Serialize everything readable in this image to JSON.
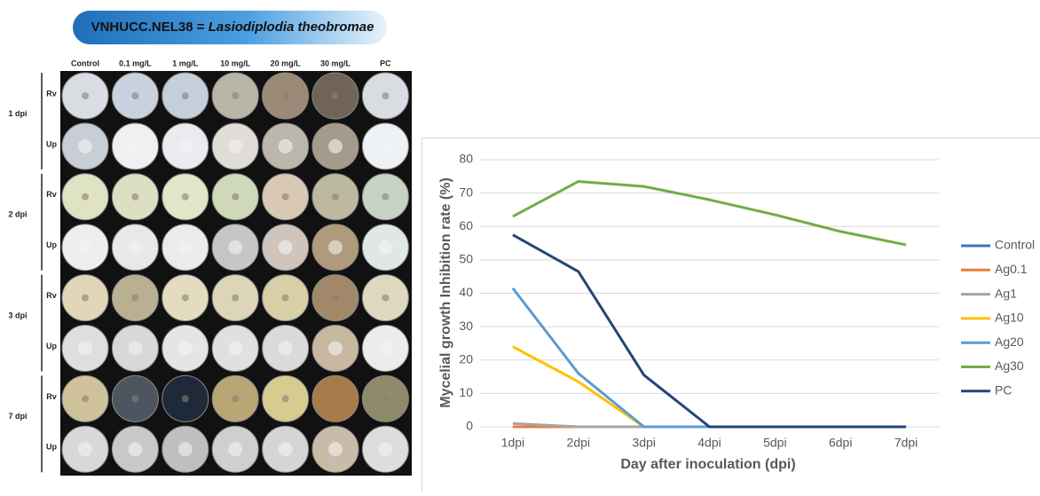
{
  "panel": {
    "title_prefix": "VNHUCC.NEL38 =",
    "title_species": "Lasiodiplodia theobromae",
    "columns": [
      "Control",
      "0.1 mg/L",
      "1 mg/L",
      "10 mg/L",
      "20 mg/L",
      "30 mg/L",
      "PC"
    ],
    "row_groups": [
      "1 dpi",
      "2 dpi",
      "3 dpi",
      "7 dpi"
    ],
    "row_sides": [
      "Rv",
      "Up"
    ]
  },
  "chart_data": {
    "type": "line",
    "categories": [
      "1dpi",
      "2dpi",
      "3dpi",
      "4dpi",
      "5dpi",
      "6dpi",
      "7dpi"
    ],
    "x_label": "Day after inoculation (dpi)",
    "y_label": "Mycelial growth Inhibition rate (%)",
    "ylim": [
      0,
      80
    ],
    "yticks": [
      0,
      10,
      20,
      30,
      40,
      50,
      60,
      70,
      80
    ],
    "grid": true,
    "legend": "right",
    "series": [
      {
        "name": "Control",
        "color": "#4472c4",
        "values": [
          0,
          0,
          0,
          0,
          0,
          0,
          0
        ]
      },
      {
        "name": "Ag0.1",
        "color": "#ed7d31",
        "values": [
          0,
          0,
          0,
          0,
          0,
          0,
          0
        ]
      },
      {
        "name": "Ag1",
        "color": "#a5a5a5",
        "values": [
          1,
          0,
          0,
          0,
          0,
          0,
          0
        ]
      },
      {
        "name": "Ag10",
        "color": "#ffc000",
        "values": [
          24,
          13.5,
          0,
          0,
          0,
          0,
          0
        ]
      },
      {
        "name": "Ag20",
        "color": "#5b9bd5",
        "values": [
          41.5,
          16,
          0,
          0,
          0,
          0,
          0
        ]
      },
      {
        "name": "Ag30",
        "color": "#70ad47",
        "values": [
          63,
          73.5,
          72,
          68,
          63.5,
          58.5,
          54.5
        ]
      },
      {
        "name": "PC",
        "color": "#264478",
        "values": [
          57.5,
          46.5,
          15.5,
          0,
          0,
          0,
          0
        ]
      }
    ]
  }
}
